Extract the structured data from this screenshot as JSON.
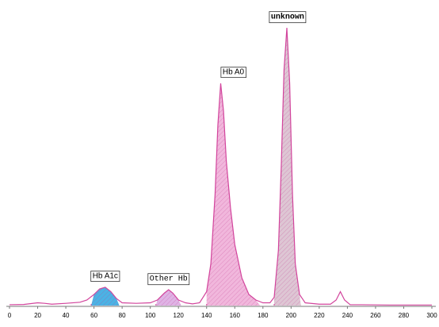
{
  "chart_data": {
    "type": "line",
    "x": [
      0,
      10,
      20,
      25,
      30,
      40,
      50,
      55,
      60,
      64,
      68,
      72,
      76,
      80,
      90,
      100,
      105,
      110,
      113,
      116,
      120,
      125,
      130,
      135,
      140,
      143,
      146,
      148,
      150,
      152,
      154,
      157,
      160,
      165,
      170,
      175,
      180,
      185,
      188,
      191,
      193,
      195,
      197,
      199,
      201,
      203,
      206,
      210,
      220,
      228,
      232,
      235,
      238,
      242,
      250,
      270,
      300
    ],
    "series": [
      {
        "color": "#d2449c",
        "values": [
          0.3,
          0.4,
          1,
          0.8,
          0.5,
          0.8,
          1.2,
          2,
          4,
          6,
          6.6,
          5,
          2.5,
          1,
          0.8,
          1,
          2,
          4.5,
          5.7,
          4.5,
          2,
          1,
          0.6,
          1,
          5,
          15,
          40,
          65,
          80,
          70,
          52,
          35,
          22,
          10,
          4,
          2,
          1,
          1,
          3,
          20,
          50,
          85,
          100,
          80,
          40,
          15,
          4,
          1,
          0.5,
          0.5,
          2,
          5,
          2,
          0.3,
          0.3,
          0.2,
          0.2
        ]
      }
    ],
    "peaks": [
      {
        "label": "Hb A1c",
        "start": 58,
        "end": 78,
        "color": "#2aa6e0",
        "font": "sans"
      },
      {
        "label": "Other Hb",
        "start": 104,
        "end": 122,
        "color": "#d9a6e0",
        "font": "mono"
      },
      {
        "label": "Hb A0",
        "start": 140,
        "end": 178,
        "color": "#eeaad6",
        "font": "sans"
      },
      {
        "label": "unknown",
        "start": 188,
        "end": 207,
        "color": "#d8bccc",
        "font": "mono-bold"
      }
    ],
    "xlim": [
      0,
      300
    ],
    "xticks": [
      0,
      20,
      40,
      60,
      80,
      100,
      120,
      140,
      160,
      180,
      200,
      220,
      240,
      260,
      280,
      300
    ],
    "ylim": [
      0,
      100
    ]
  }
}
